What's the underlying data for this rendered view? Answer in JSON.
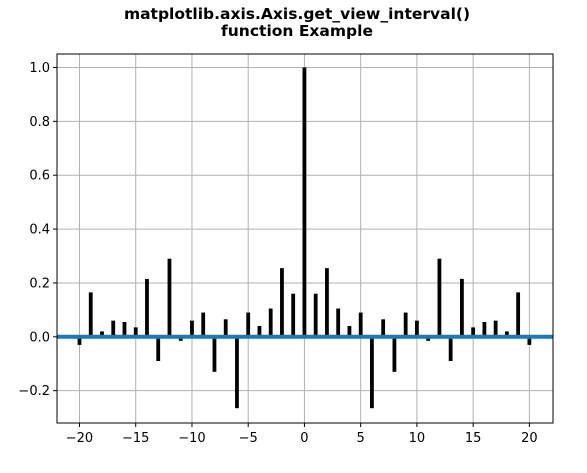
{
  "chart_data": {
    "type": "bar",
    "title": "matplotlib.axis.Axis.get_view_interval()",
    "subtitle": "function Example",
    "xlabel": "",
    "ylabel": "",
    "xlim": [
      -22,
      22.1
    ],
    "ylim": [
      -0.32,
      1.05
    ],
    "grid": true,
    "x_ticks": [
      -20,
      -15,
      -10,
      -5,
      0,
      5,
      10,
      15,
      20
    ],
    "x_tick_labels": [
      "−20",
      "−15",
      "−10",
      "−5",
      "0",
      "5",
      "10",
      "15",
      "20"
    ],
    "y_ticks": [
      -0.2,
      0.0,
      0.2,
      0.4,
      0.6,
      0.8,
      1.0
    ],
    "y_tick_labels": [
      "−0.2",
      "0.0",
      "0.2",
      "0.4",
      "0.6",
      "0.8",
      "1.0"
    ],
    "x": [
      -20,
      -19,
      -18,
      -17,
      -16,
      -15,
      -14,
      -13,
      -12,
      -11,
      -10,
      -9,
      -8,
      -7,
      -6,
      -5,
      -4,
      -3,
      -2,
      -1,
      0,
      1,
      2,
      3,
      4,
      5,
      6,
      7,
      8,
      9,
      10,
      11,
      12,
      13,
      14,
      15,
      16,
      17,
      18,
      19,
      20
    ],
    "values": [
      -0.03,
      0.165,
      0.02,
      0.06,
      0.055,
      0.035,
      0.215,
      -0.09,
      0.29,
      -0.015,
      0.06,
      0.09,
      -0.13,
      0.065,
      -0.265,
      0.09,
      0.04,
      0.105,
      0.255,
      0.16,
      1.0,
      0.16,
      0.255,
      0.105,
      0.04,
      0.09,
      -0.265,
      0.065,
      -0.13,
      0.09,
      0.06,
      -0.015,
      0.29,
      -0.09,
      0.215,
      0.035,
      0.055,
      0.06,
      0.02,
      0.165,
      -0.03
    ],
    "bar_color": "#000000",
    "hline": {
      "y": 0.0,
      "color": "#1f77b4"
    }
  }
}
